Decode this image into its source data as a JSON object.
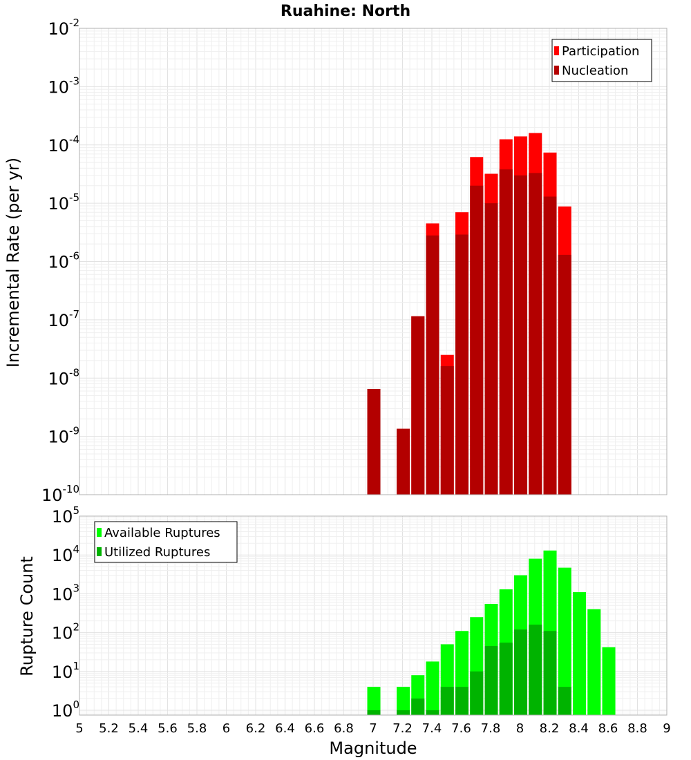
{
  "chart_data": [
    {
      "type": "bar",
      "title": "Ruahine: North",
      "xlabel": "",
      "ylabel": "Incremental Rate (per yr)",
      "yscale": "log",
      "ylim": [
        1e-10,
        0.01
      ],
      "xlim": [
        5,
        9
      ],
      "grid": true,
      "legend_position": "top-right",
      "y_tick_exponents": [
        "-10",
        "-9",
        "-8",
        "-7",
        "-6",
        "-5",
        "-4",
        "-3",
        "-2"
      ],
      "y_tick_base": "10",
      "x": [
        7.0,
        7.2,
        7.3,
        7.4,
        7.5,
        7.6,
        7.7,
        7.8,
        7.9,
        8.0,
        8.1,
        8.2,
        8.3
      ],
      "series": [
        {
          "name": "Participation",
          "color": "#ff0000",
          "values": [
            6.5e-09,
            1.35e-09,
            1.15e-07,
            4.5e-06,
            2.5e-08,
            7e-06,
            6.2e-05,
            3.2e-05,
            0.000125,
            0.00014,
            0.00016,
            7.4e-05,
            8.8e-06
          ]
        },
        {
          "name": "Nucleation",
          "color": "#b30000",
          "values": [
            6.5e-09,
            1.35e-09,
            1.15e-07,
            2.8e-06,
            1.6e-08,
            2.9e-06,
            2e-05,
            1e-05,
            3.8e-05,
            3e-05,
            3.3e-05,
            1.3e-05,
            1.3e-06
          ]
        }
      ]
    },
    {
      "type": "bar",
      "xlabel": "Magnitude",
      "ylabel": "Rupture Count",
      "yscale": "log",
      "ylim": [
        0.75,
        100000
      ],
      "xlim": [
        5,
        9
      ],
      "grid": true,
      "legend_position": "top-left",
      "y_tick_exponents": [
        "0",
        "1",
        "2",
        "3",
        "4",
        "5"
      ],
      "y_tick_base": "10",
      "x_ticks": [
        "5",
        "5.2",
        "5.4",
        "5.6",
        "5.8",
        "6",
        "6.2",
        "6.4",
        "6.6",
        "6.8",
        "7",
        "7.2",
        "7.4",
        "7.6",
        "7.8",
        "8",
        "8.2",
        "8.4",
        "8.6",
        "8.8",
        "9"
      ],
      "x": [
        7.0,
        7.2,
        7.3,
        7.4,
        7.5,
        7.6,
        7.7,
        7.8,
        7.9,
        8.0,
        8.1,
        8.2,
        8.3,
        8.4,
        8.5,
        8.6
      ],
      "series": [
        {
          "name": "Available Ruptures",
          "color": "#00ff00",
          "values": [
            4,
            4,
            8,
            18,
            50,
            110,
            250,
            550,
            1300,
            3000,
            8000,
            13000,
            4700,
            1100,
            400,
            42
          ]
        },
        {
          "name": "Utilized Ruptures",
          "color": "#00b300",
          "values": [
            1,
            1,
            2,
            1,
            4,
            4,
            10,
            45,
            55,
            120,
            160,
            110,
            4,
            0,
            0,
            0
          ]
        }
      ]
    }
  ]
}
